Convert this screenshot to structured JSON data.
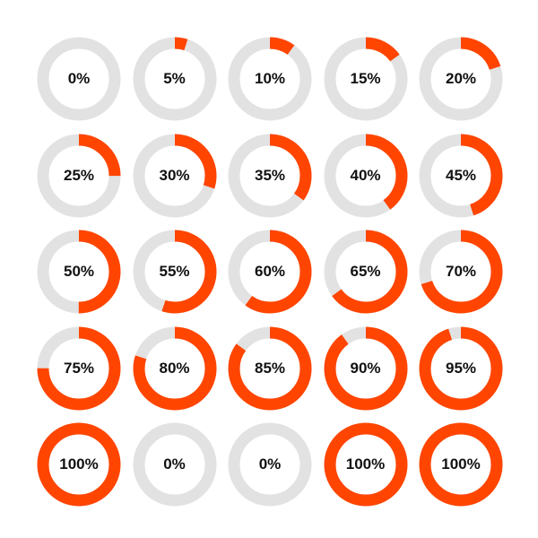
{
  "colors": {
    "progress": "#ff4500",
    "track": "#e2e2e2",
    "text": "#111111",
    "background": "#ffffff"
  },
  "rings": [
    {
      "label": "0%",
      "percent": 0
    },
    {
      "label": "5%",
      "percent": 5
    },
    {
      "label": "10%",
      "percent": 10
    },
    {
      "label": "15%",
      "percent": 15
    },
    {
      "label": "20%",
      "percent": 20
    },
    {
      "label": "25%",
      "percent": 25
    },
    {
      "label": "30%",
      "percent": 30
    },
    {
      "label": "35%",
      "percent": 35
    },
    {
      "label": "40%",
      "percent": 40
    },
    {
      "label": "45%",
      "percent": 45
    },
    {
      "label": "50%",
      "percent": 50
    },
    {
      "label": "55%",
      "percent": 55
    },
    {
      "label": "60%",
      "percent": 60
    },
    {
      "label": "65%",
      "percent": 65
    },
    {
      "label": "70%",
      "percent": 70
    },
    {
      "label": "75%",
      "percent": 75
    },
    {
      "label": "80%",
      "percent": 80
    },
    {
      "label": "85%",
      "percent": 85
    },
    {
      "label": "90%",
      "percent": 90
    },
    {
      "label": "95%",
      "percent": 95
    },
    {
      "label": "100%",
      "percent": 100
    },
    {
      "label": "0%",
      "percent": 0
    },
    {
      "label": "0%",
      "percent": 0
    },
    {
      "label": "100%",
      "percent": 100
    },
    {
      "label": "100%",
      "percent": 100
    }
  ]
}
